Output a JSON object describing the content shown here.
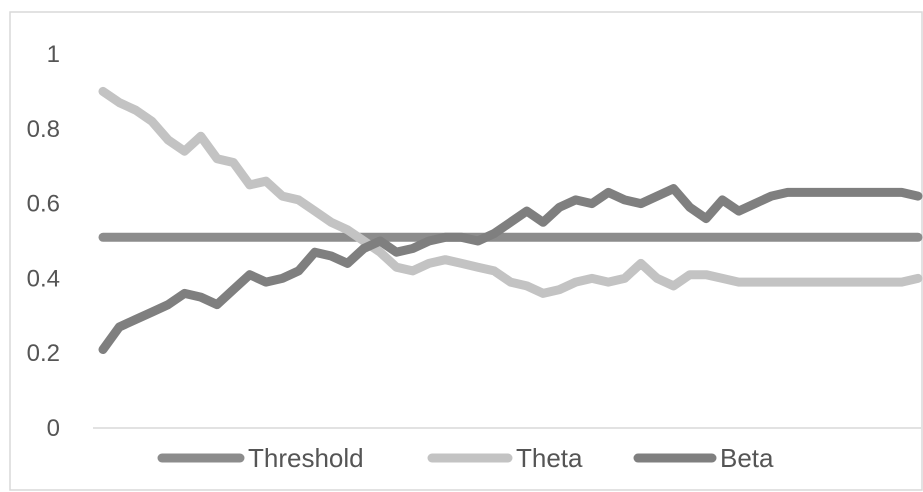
{
  "chart_data": {
    "type": "line",
    "title": "",
    "xlabel": "",
    "ylabel": "",
    "ylim": [
      0,
      1
    ],
    "yticks": [
      "0",
      "0.2",
      "0.4",
      "0.6",
      "0.8",
      "1"
    ],
    "grid": false,
    "legend_position": "bottom",
    "x": [
      1,
      2,
      3,
      4,
      5,
      6,
      7,
      8,
      9,
      10,
      11,
      12,
      13,
      14,
      15,
      16,
      17,
      18,
      19,
      20,
      21,
      22,
      23,
      24,
      25,
      26,
      27,
      28,
      29,
      30,
      31,
      32,
      33,
      34,
      35,
      36,
      37,
      38,
      39,
      40,
      41,
      42,
      43,
      44,
      45,
      46,
      47,
      48,
      49,
      50,
      51
    ],
    "series": [
      {
        "name": "Threshold",
        "color": "#8c8c8c",
        "values": [
          0.51,
          0.51,
          0.51,
          0.51,
          0.51,
          0.51,
          0.51,
          0.51,
          0.51,
          0.51,
          0.51,
          0.51,
          0.51,
          0.51,
          0.51,
          0.51,
          0.51,
          0.51,
          0.51,
          0.51,
          0.51,
          0.51,
          0.51,
          0.51,
          0.51,
          0.51,
          0.51,
          0.51,
          0.51,
          0.51,
          0.51,
          0.51,
          0.51,
          0.51,
          0.51,
          0.51,
          0.51,
          0.51,
          0.51,
          0.51,
          0.51,
          0.51,
          0.51,
          0.51,
          0.51,
          0.51,
          0.51,
          0.51,
          0.51,
          0.51,
          0.51
        ]
      },
      {
        "name": "Theta",
        "color": "#c3c3c3",
        "values": [
          0.9,
          0.87,
          0.85,
          0.82,
          0.77,
          0.74,
          0.78,
          0.72,
          0.71,
          0.65,
          0.66,
          0.62,
          0.61,
          0.58,
          0.55,
          0.53,
          0.5,
          0.47,
          0.43,
          0.42,
          0.44,
          0.45,
          0.44,
          0.43,
          0.42,
          0.39,
          0.38,
          0.36,
          0.37,
          0.39,
          0.4,
          0.39,
          0.4,
          0.44,
          0.4,
          0.38,
          0.41,
          0.41,
          0.4,
          0.39,
          0.39,
          0.39,
          0.39,
          0.39,
          0.39,
          0.39,
          0.39,
          0.39,
          0.39,
          0.39,
          0.4
        ]
      },
      {
        "name": "Beta",
        "color": "#7f7f7f",
        "values": [
          0.21,
          0.27,
          0.29,
          0.31,
          0.33,
          0.36,
          0.35,
          0.33,
          0.37,
          0.41,
          0.39,
          0.4,
          0.42,
          0.47,
          0.46,
          0.44,
          0.48,
          0.5,
          0.47,
          0.48,
          0.5,
          0.51,
          0.51,
          0.5,
          0.52,
          0.55,
          0.58,
          0.55,
          0.59,
          0.61,
          0.6,
          0.63,
          0.61,
          0.6,
          0.62,
          0.64,
          0.59,
          0.56,
          0.61,
          0.58,
          0.6,
          0.62,
          0.63,
          0.63,
          0.63,
          0.63,
          0.63,
          0.63,
          0.63,
          0.63,
          0.62
        ]
      }
    ]
  }
}
